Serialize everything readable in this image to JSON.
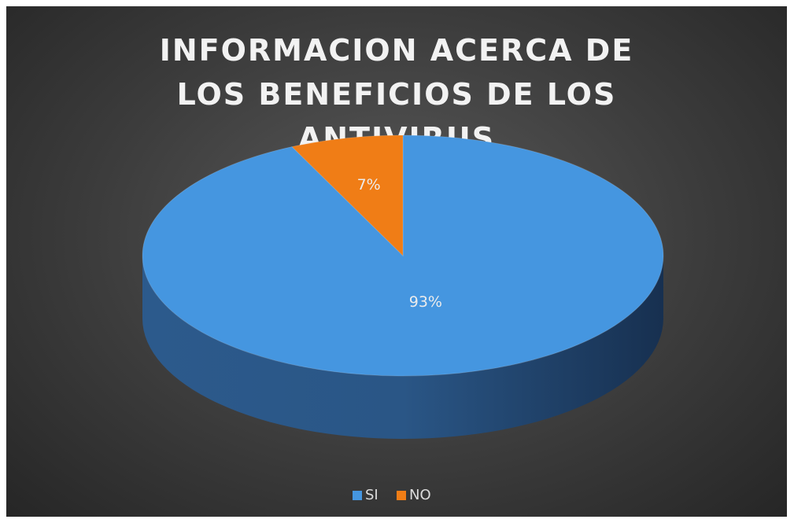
{
  "chart_data": {
    "type": "pie",
    "title": "INFORMACION ACERCA DE LOS BENEFICIOS DE LOS ANTIVIRUS",
    "categories": [
      "SI",
      "NO"
    ],
    "values": [
      93,
      7
    ],
    "value_labels": [
      "93%",
      "7%"
    ],
    "colors": [
      "#4596e0",
      "#f07d16"
    ],
    "legend": "bottom"
  }
}
